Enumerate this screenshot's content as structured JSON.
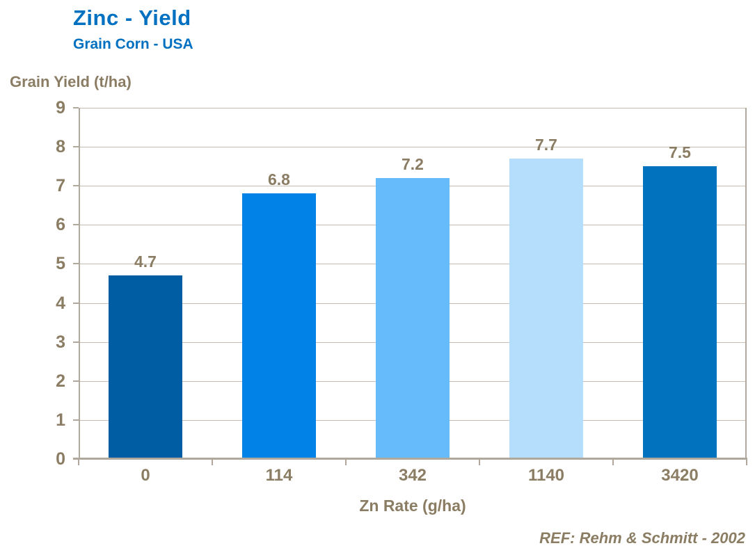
{
  "header": {
    "title": "Zinc - Yield",
    "subtitle": "Grain Corn - USA"
  },
  "footer": {
    "ref_note": "REF: Rehm & Schmitt - 2002"
  },
  "chart_data": {
    "type": "bar",
    "title": "Zinc - Yield",
    "subtitle": "Grain Corn - USA",
    "categories": [
      "0",
      "114",
      "342",
      "1140",
      "3420"
    ],
    "values": [
      4.7,
      6.8,
      7.2,
      7.7,
      7.5
    ],
    "value_labels": [
      "4.7",
      "6.8",
      "7.2",
      "7.7",
      "7.5"
    ],
    "xlabel": "Zn Rate (g/ha)",
    "ylabel": "Grain Yield (t/ha)",
    "ylim": [
      0,
      9
    ],
    "ytick_step": 1,
    "yticks": [
      "0",
      "1",
      "2",
      "3",
      "4",
      "5",
      "6",
      "7",
      "8",
      "9"
    ],
    "grid": true,
    "legend": false,
    "annotation": "REF: Rehm & Schmitt - 2002",
    "bar_colors": [
      "#005CA3",
      "#0082E6",
      "#66BBFA",
      "#B5DDFC",
      "#0072BE"
    ]
  },
  "colors": {
    "title_text": "#0070C0",
    "axis_text": "#8B7D63",
    "gridline": "#C5BDB1",
    "axis_line": "#B0A89C",
    "background": "#FFFFFF"
  }
}
